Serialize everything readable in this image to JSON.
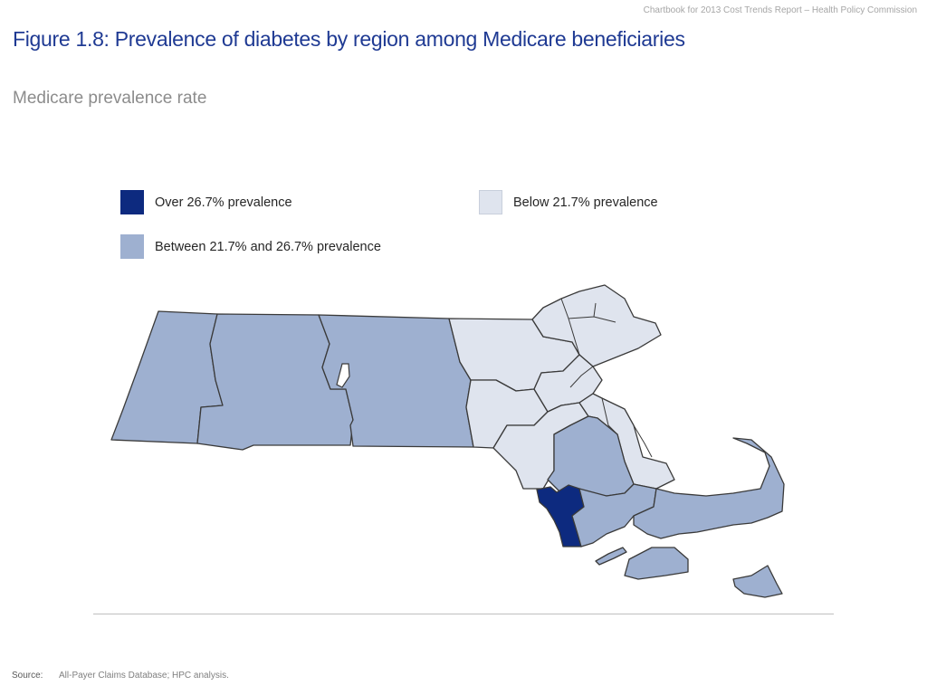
{
  "header_note": "Chartbook for 2013 Cost Trends Report – Health Policy Commission",
  "title": "Figure 1.8: Prevalence of diabetes by region among Medicare beneficiaries",
  "subtitle": "Medicare prevalence rate",
  "colors": {
    "high": "#0d2a7f",
    "mid": "#9eb0d0",
    "low": "#dfe4ee",
    "title": "#1f3a93"
  },
  "legend": {
    "high": "Over 26.7% prevalence",
    "mid": "Between 21.7% and 26.7% prevalence",
    "low": "Below 21.7% prevalence"
  },
  "source": {
    "label": "Source:",
    "text": "All-Payer Claims Database; HPC analysis."
  }
}
